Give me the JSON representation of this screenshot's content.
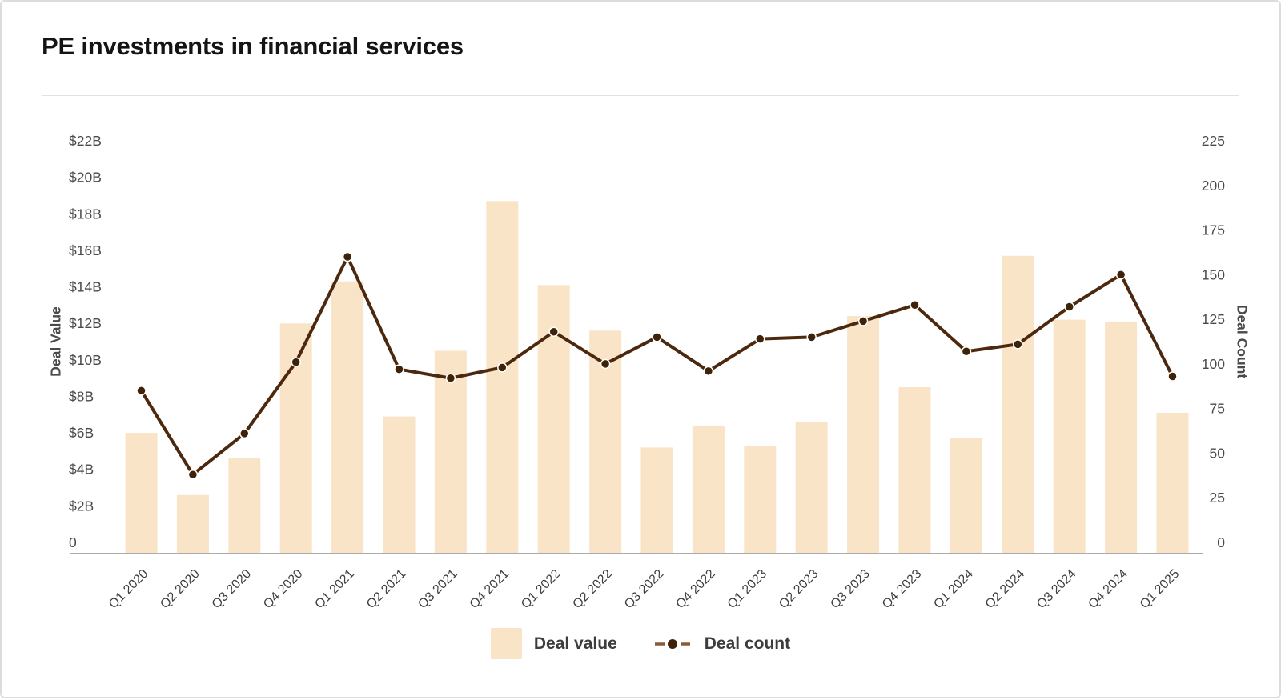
{
  "header": {
    "title": "PE investments in financial services"
  },
  "chart_data": {
    "type": "combo-bar-line",
    "categories": [
      "Q1 2020",
      "Q2 2020",
      "Q3 2020",
      "Q4 2020",
      "Q1 2021",
      "Q2 2021",
      "Q3 2021",
      "Q4 2021",
      "Q1 2022",
      "Q2 2022",
      "Q3 2022",
      "Q4 2022",
      "Q1 2023",
      "Q2 2023",
      "Q3 2023",
      "Q4 2023",
      "Q1 2024",
      "Q2 2024",
      "Q3 2024",
      "Q4 2024",
      "Q1 2025"
    ],
    "series": [
      {
        "name": "Deal value",
        "type": "bar",
        "yaxis": "left",
        "unit": "USD billions",
        "values": [
          6.0,
          2.6,
          4.6,
          12.0,
          14.3,
          6.9,
          10.5,
          18.7,
          14.1,
          11.6,
          5.2,
          6.4,
          5.3,
          6.6,
          12.4,
          8.5,
          5.7,
          15.7,
          12.2,
          12.1,
          7.1
        ]
      },
      {
        "name": "Deal count",
        "type": "line",
        "yaxis": "right",
        "values": [
          85,
          38,
          61,
          101,
          160,
          97,
          92,
          98,
          118,
          100,
          115,
          96,
          114,
          115,
          124,
          133,
          107,
          111,
          132,
          150,
          93
        ]
      }
    ],
    "left_axis": {
      "title": "Deal Value",
      "min": 0,
      "max": 22,
      "tick_step": 2,
      "tick_labels": [
        "0",
        "$2B",
        "$4B",
        "$6B",
        "$8B",
        "$10B",
        "$12B",
        "$14B",
        "$16B",
        "$18B",
        "$20B",
        "$22B"
      ]
    },
    "right_axis": {
      "title": "Deal Count",
      "min": 0,
      "max": 225,
      "tick_step": 25,
      "tick_labels": [
        "0",
        "25",
        "50",
        "75",
        "100",
        "125",
        "150",
        "175",
        "200",
        "225"
      ]
    },
    "grid": false,
    "legend_position": "bottom"
  },
  "legend": {
    "deal_value_label": "Deal value",
    "deal_count_label": "Deal count"
  },
  "colors": {
    "bar_fill": "#fae4c7",
    "line_stroke": "#4c290e",
    "dot_fill": "#3f2309",
    "dot_ring": "#ffffff",
    "axis_line": "#8f8f8f",
    "tick_text": "#4a4a4a",
    "x_label_text": "#3d3d3d",
    "title_text": "#141414",
    "legend_text": "#3d3d3d",
    "legend_dash": "#8a5a33",
    "divider": "#e4e2e0",
    "background": "#ffffff"
  }
}
